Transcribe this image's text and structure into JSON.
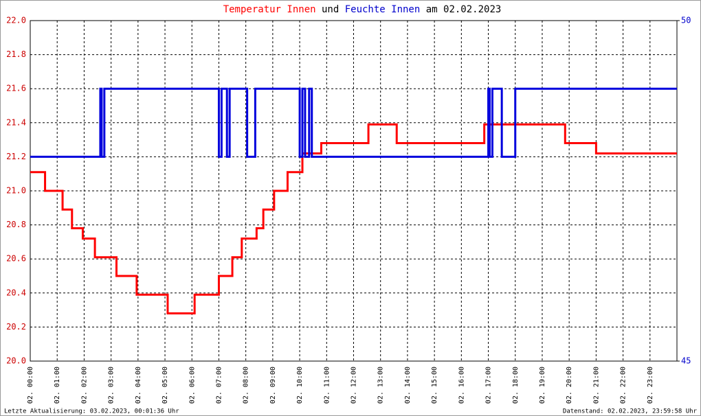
{
  "chart_data": {
    "type": "line",
    "title_and": "und",
    "title_suffix": "am 02.02.2023",
    "footer_left": "Letzte Aktualisierung: 03.02.2023, 00:01:36 Uhr",
    "footer_right": "Datenstand: 02.02.2023, 23:59:58 Uhr",
    "xlim": [
      0,
      24
    ],
    "xticks": [
      {
        "value": 0,
        "label": "02. 00:00"
      },
      {
        "value": 1,
        "label": "02. 01:00"
      },
      {
        "value": 2,
        "label": "02. 02:00"
      },
      {
        "value": 3,
        "label": "02. 03:00"
      },
      {
        "value": 4,
        "label": "02. 04:00"
      },
      {
        "value": 5,
        "label": "02. 05:00"
      },
      {
        "value": 6,
        "label": "02. 06:00"
      },
      {
        "value": 7,
        "label": "02. 07:00"
      },
      {
        "value": 8,
        "label": "02. 08:00"
      },
      {
        "value": 9,
        "label": "02. 09:00"
      },
      {
        "value": 10,
        "label": "02. 10:00"
      },
      {
        "value": 11,
        "label": "02. 11:00"
      },
      {
        "value": 12,
        "label": "02. 12:00"
      },
      {
        "value": 13,
        "label": "02. 13:00"
      },
      {
        "value": 14,
        "label": "02. 14:00"
      },
      {
        "value": 15,
        "label": "02. 15:00"
      },
      {
        "value": 16,
        "label": "02. 16:00"
      },
      {
        "value": 17,
        "label": "02. 17:00"
      },
      {
        "value": 18,
        "label": "02. 18:00"
      },
      {
        "value": 19,
        "label": "02. 19:00"
      },
      {
        "value": 20,
        "label": "02. 20:00"
      },
      {
        "value": 21,
        "label": "02. 21:00"
      },
      {
        "value": 22,
        "label": "02. 22:00"
      },
      {
        "value": 23,
        "label": "02. 23:00"
      }
    ],
    "ylim": [
      20,
      22
    ],
    "yticks": [
      {
        "value": 20,
        "label": "20.0"
      },
      20.2,
      20.4,
      20.6,
      20.8,
      {
        "value": 21,
        "label": "21.0"
      },
      21.2,
      21.4,
      21.6,
      21.8,
      {
        "value": 22,
        "label": "22.0"
      }
    ],
    "y2lim": [
      45,
      50
    ],
    "y2ticks": [
      45,
      50
    ],
    "grid": true,
    "y_label_color": "#cc0000",
    "y2_label_color": "#0000cc",
    "series": [
      {
        "name": "Temperatur Innen",
        "color": "#ff0000",
        "x": [
          0,
          0.55,
          0.55,
          1.2,
          1.2,
          1.55,
          1.55,
          1.95,
          1.95,
          2.4,
          2.4,
          3.2,
          3.2,
          3.95,
          3.95,
          5.1,
          5.1,
          6.1,
          6.1,
          7.0,
          7.0,
          7.5,
          7.5,
          7.85,
          7.85,
          8.4,
          8.4,
          8.65,
          8.65,
          9.05,
          9.05,
          9.55,
          9.55,
          10.1,
          10.1,
          10.8,
          10.8,
          12.55,
          12.55,
          13.6,
          13.6,
          16.85,
          16.85,
          19.85,
          19.85,
          21.0,
          21.0,
          24
        ],
        "values": [
          21.11,
          21.11,
          21.0,
          21.0,
          20.89,
          20.89,
          20.78,
          20.78,
          20.72,
          20.72,
          20.61,
          20.61,
          20.5,
          20.5,
          20.39,
          20.39,
          20.28,
          20.28,
          20.39,
          20.39,
          20.5,
          20.5,
          20.61,
          20.61,
          20.72,
          20.72,
          20.78,
          20.78,
          20.89,
          20.89,
          21.0,
          21.0,
          21.11,
          21.11,
          21.22,
          21.22,
          21.28,
          21.28,
          21.39,
          21.39,
          21.28,
          21.28,
          21.39,
          21.39,
          21.28,
          21.28,
          21.22,
          21.22
        ]
      },
      {
        "name": "Feuchte Innen",
        "color": "#0000dd",
        "axis": "y2",
        "x": [
          0,
          2.6,
          2.6,
          2.65,
          2.65,
          2.75,
          2.75,
          7.0,
          7.0,
          7.1,
          7.1,
          7.3,
          7.3,
          7.4,
          7.4,
          8.05,
          8.05,
          8.35,
          8.35,
          10.0,
          10.0,
          10.1,
          10.1,
          10.2,
          10.2,
          10.35,
          10.35,
          10.45,
          10.45,
          17.0,
          17.0,
          17.05,
          17.05,
          17.15,
          17.15,
          17.5,
          17.5,
          18.0,
          18.0,
          24
        ],
        "values": [
          48,
          48,
          49,
          49,
          48,
          48,
          49,
          49,
          48,
          48,
          49,
          49,
          48,
          48,
          49,
          49,
          48,
          48,
          49,
          49,
          48,
          48,
          49,
          49,
          48,
          48,
          49,
          49,
          48,
          48,
          49,
          49,
          48,
          48,
          49,
          49,
          48,
          48,
          49,
          49
        ]
      }
    ]
  }
}
